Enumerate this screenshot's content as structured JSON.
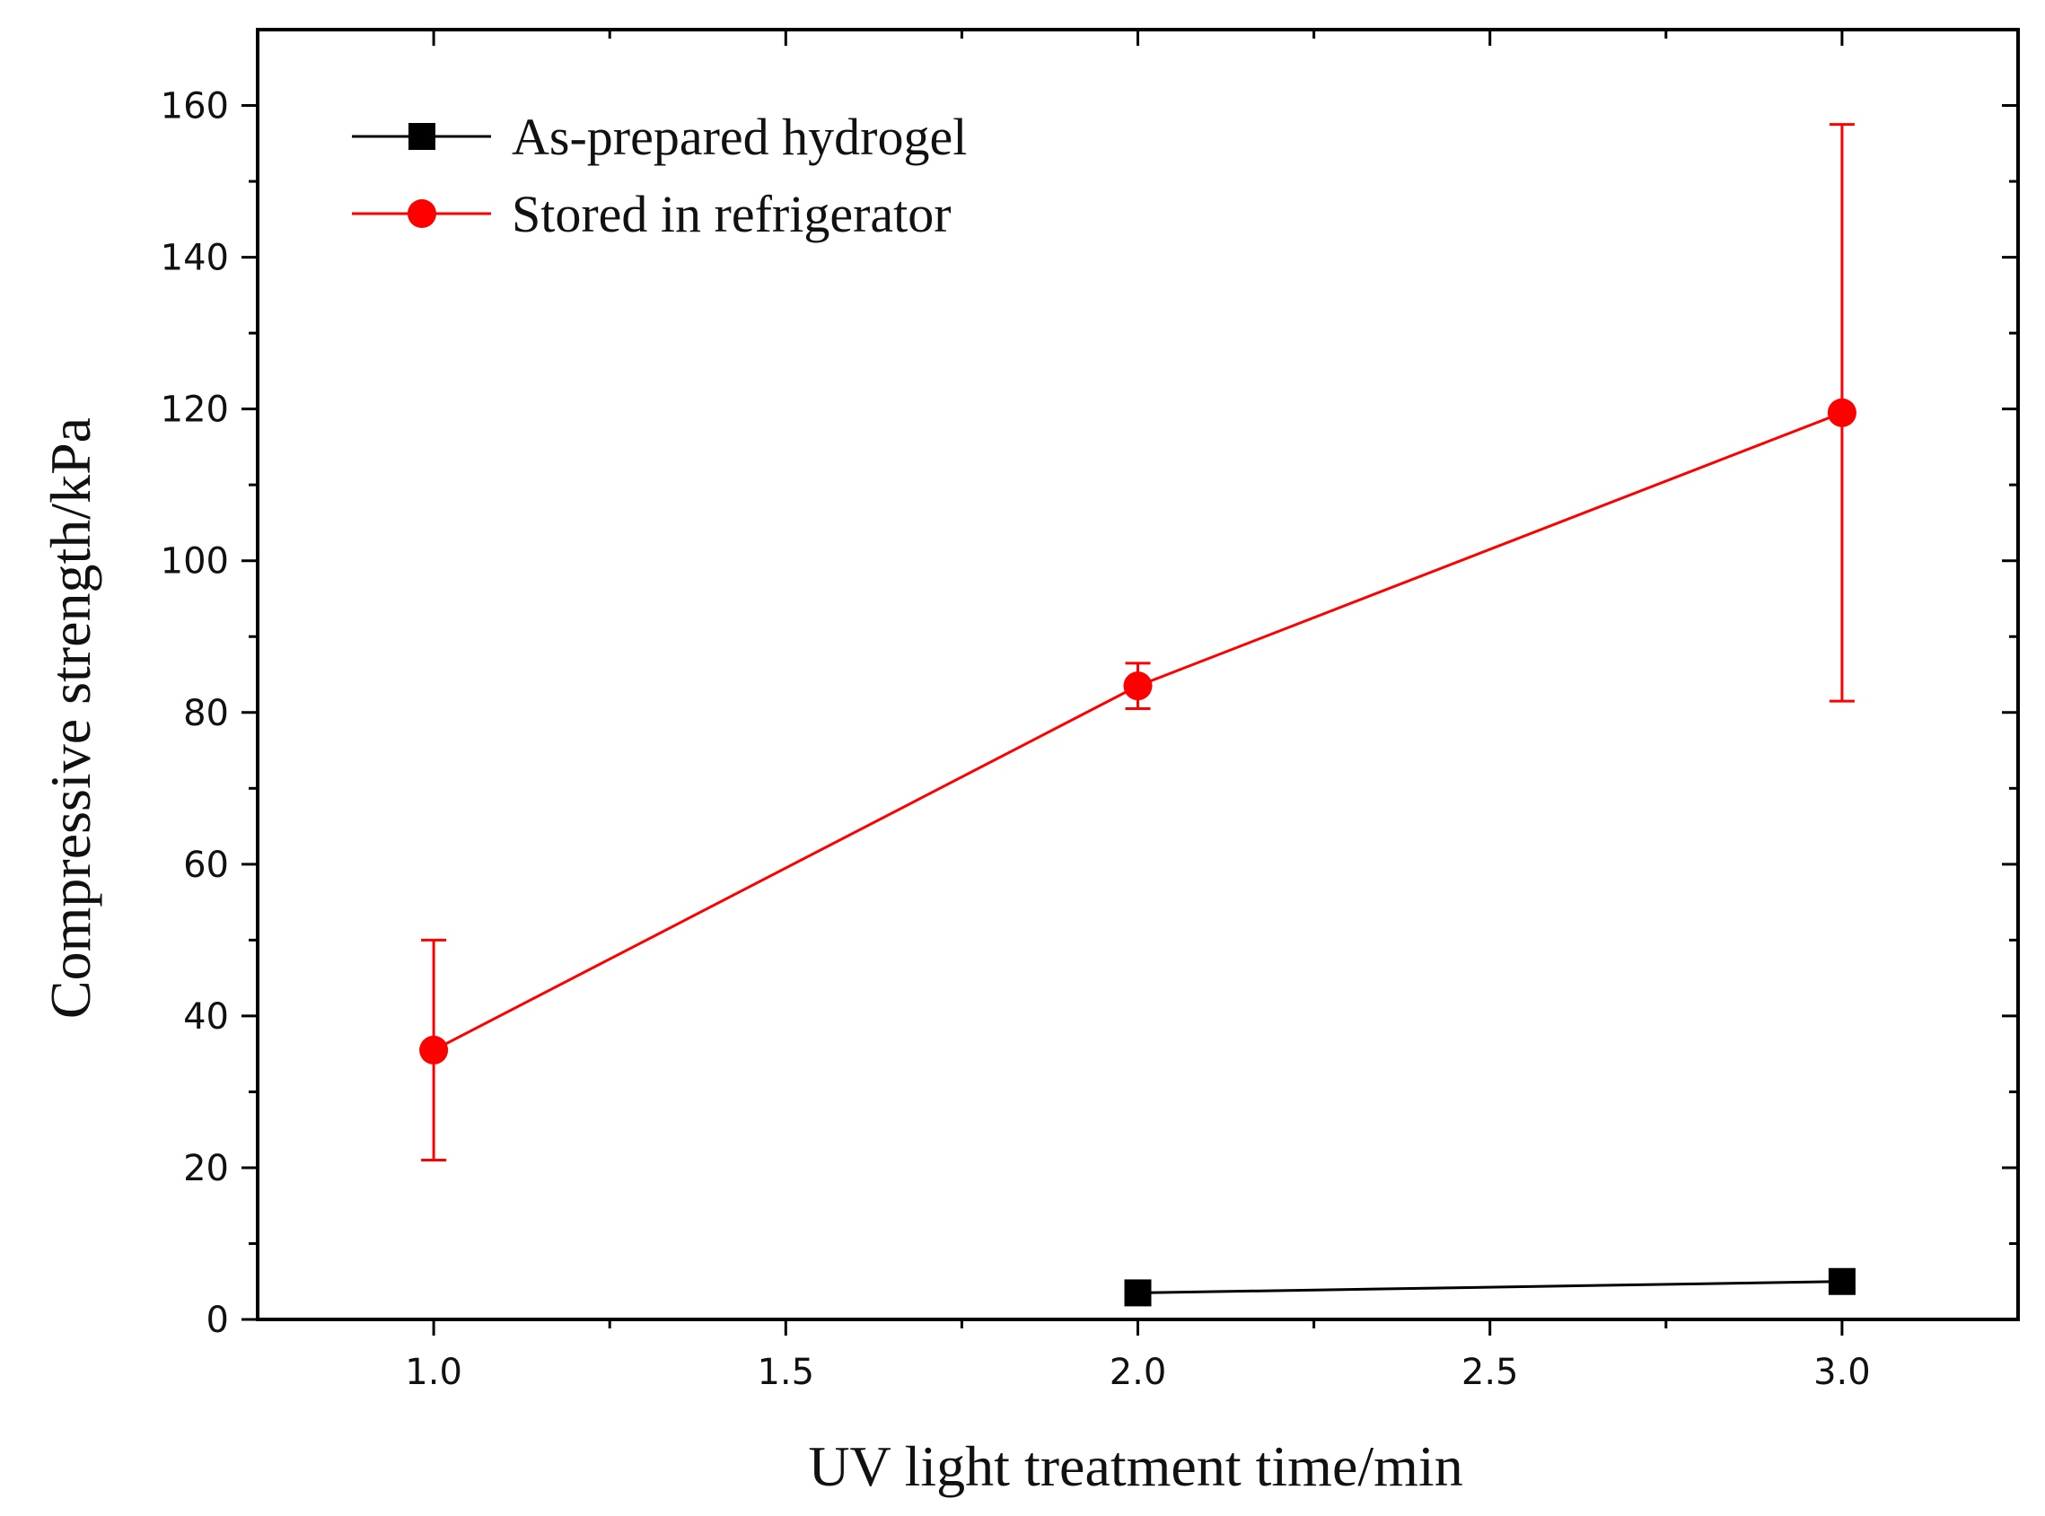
{
  "chart_data": {
    "type": "line",
    "title": "",
    "xlabel": "UV light treatment time/min",
    "ylabel": "Compressive strength/kPa",
    "xlim": [
      0.75,
      3.25
    ],
    "ylim": [
      0,
      170
    ],
    "x_ticks": [
      1.0,
      1.5,
      2.0,
      2.5,
      3.0
    ],
    "x_tick_labels": [
      "1.0",
      "1.5",
      "2.0",
      "2.5",
      "3.0"
    ],
    "y_ticks": [
      0,
      20,
      40,
      60,
      80,
      100,
      120,
      140,
      160
    ],
    "y_tick_labels": [
      "0",
      "20",
      "40",
      "60",
      "80",
      "100",
      "120",
      "140",
      "160"
    ],
    "grid": false,
    "legend_position": "top-left",
    "series": [
      {
        "name": "As-prepared hydrogel",
        "color": "#000000",
        "marker": "square",
        "x": [
          2.0,
          3.0
        ],
        "values": [
          3.5,
          5.0
        ],
        "errors": [
          0.5,
          1.0
        ]
      },
      {
        "name": "Stored in refrigerator",
        "color": "#ff0000",
        "marker": "circle",
        "x": [
          1.0,
          2.0,
          3.0
        ],
        "values": [
          35.5,
          83.5,
          119.5
        ],
        "errors": [
          14.5,
          3.0,
          38.0
        ]
      }
    ]
  }
}
